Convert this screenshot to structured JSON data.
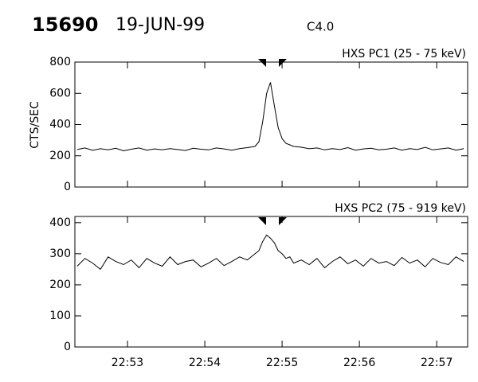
{
  "header": {
    "id": "15690",
    "date": "19-JUN-99",
    "class": "C4.0"
  },
  "chart_data": [
    {
      "type": "line",
      "title": "HXS PC1 (25 - 75 keV)",
      "y_label": "CTS/SEC",
      "x": [
        1372.35,
        1372.45,
        1372.55,
        1372.65,
        1372.75,
        1372.85,
        1372.95,
        1373.05,
        1373.15,
        1373.25,
        1373.35,
        1373.45,
        1373.55,
        1373.65,
        1373.75,
        1373.85,
        1373.95,
        1374.05,
        1374.15,
        1374.25,
        1374.35,
        1374.45,
        1374.55,
        1374.65,
        1374.7,
        1374.75,
        1374.8,
        1374.85,
        1374.9,
        1374.95,
        1375.0,
        1375.05,
        1375.1,
        1375.15,
        1375.25,
        1375.35,
        1375.45,
        1375.55,
        1375.65,
        1375.75,
        1375.85,
        1375.95,
        1376.05,
        1376.15,
        1376.25,
        1376.35,
        1376.45,
        1376.55,
        1376.65,
        1376.75,
        1376.85,
        1376.95,
        1377.05,
        1377.15,
        1377.25,
        1377.35
      ],
      "values": [
        240,
        250,
        235,
        245,
        238,
        248,
        232,
        242,
        250,
        236,
        244,
        238,
        246,
        240,
        234,
        248,
        242,
        238,
        250,
        244,
        236,
        246,
        252,
        260,
        290,
        420,
        600,
        670,
        520,
        380,
        310,
        280,
        270,
        260,
        255,
        245,
        250,
        238,
        246,
        240,
        252,
        236,
        244,
        248,
        238,
        242,
        250,
        236,
        246,
        240,
        254,
        238,
        244,
        250,
        236,
        246
      ],
      "color": "#000000",
      "xlim": [
        1372.32,
        1377.4
      ],
      "ylim": [
        0,
        800
      ],
      "yticks": [
        0,
        200,
        400,
        600,
        800
      ]
    },
    {
      "type": "line",
      "title": "HXS PC2 (75 - 919 keV)",
      "x": [
        1372.35,
        1372.45,
        1372.55,
        1372.65,
        1372.75,
        1372.85,
        1372.95,
        1373.05,
        1373.15,
        1373.25,
        1373.35,
        1373.45,
        1373.55,
        1373.65,
        1373.75,
        1373.85,
        1373.95,
        1374.05,
        1374.15,
        1374.25,
        1374.35,
        1374.45,
        1374.55,
        1374.65,
        1374.7,
        1374.75,
        1374.8,
        1374.85,
        1374.9,
        1374.95,
        1375.0,
        1375.05,
        1375.1,
        1375.15,
        1375.25,
        1375.35,
        1375.45,
        1375.55,
        1375.65,
        1375.75,
        1375.85,
        1375.95,
        1376.05,
        1376.15,
        1376.25,
        1376.35,
        1376.45,
        1376.55,
        1376.65,
        1376.75,
        1376.85,
        1376.95,
        1377.05,
        1377.15,
        1377.25,
        1377.35
      ],
      "values": [
        260,
        285,
        270,
        250,
        290,
        275,
        265,
        280,
        255,
        285,
        270,
        260,
        290,
        265,
        275,
        280,
        258,
        270,
        285,
        262,
        275,
        290,
        280,
        300,
        310,
        340,
        360,
        350,
        335,
        310,
        300,
        285,
        290,
        270,
        280,
        265,
        285,
        255,
        275,
        290,
        268,
        280,
        260,
        285,
        270,
        275,
        262,
        288,
        270,
        280,
        258,
        285,
        272,
        265,
        290,
        275
      ],
      "color": "#000000",
      "xlim": [
        1372.32,
        1377.4
      ],
      "ylim": [
        0,
        420
      ],
      "yticks": [
        0,
        100,
        200,
        300,
        400
      ],
      "xticks": [
        {
          "value": 1373,
          "label": "22:53"
        },
        {
          "value": 1374,
          "label": "22:54"
        },
        {
          "value": 1375,
          "label": "22:55"
        },
        {
          "value": 1376,
          "label": "22:56"
        },
        {
          "value": 1377,
          "label": "22:57"
        }
      ]
    }
  ]
}
